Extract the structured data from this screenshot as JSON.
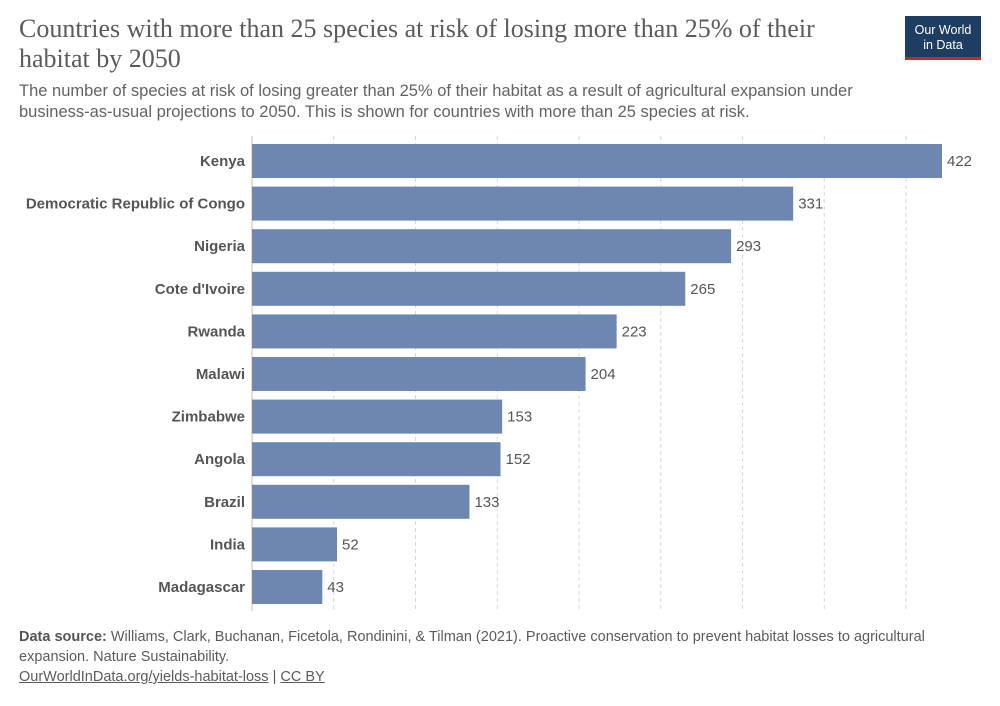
{
  "header": {
    "title": "Countries with more than 25 species at risk of losing more than 25% of their habitat by 2050",
    "subtitle": "The number of species at risk of losing greater than 25% of their habitat as a result of agricultural expansion under business-as-usual projections to 2050. This is shown for countries with more than 25 species at risk.",
    "logo_line1": "Our World",
    "logo_line2": "in Data"
  },
  "colors": {
    "bar": "#6d87b0",
    "grid": "#d8d8d8",
    "logo_bg": "#1d3d63",
    "logo_accent": "#ce261e"
  },
  "chart_data": {
    "type": "bar",
    "orientation": "horizontal",
    "categories": [
      "Kenya",
      "Democratic Republic of Congo",
      "Nigeria",
      "Cote d'Ivoire",
      "Rwanda",
      "Malawi",
      "Zimbabwe",
      "Angola",
      "Brazil",
      "India",
      "Madagascar"
    ],
    "values": [
      422,
      331,
      293,
      265,
      223,
      204,
      153,
      152,
      133,
      52,
      43
    ],
    "xlim": [
      0,
      422
    ],
    "grid": true,
    "data_labels": true
  },
  "footer": {
    "source_label": "Data source:",
    "source_text": "Williams, Clark, Buchanan, Ficetola, Rondinini, & Tilman (2021). Proactive conservation to prevent habitat losses to agricultural expansion. Nature Sustainability.",
    "link_text": "OurWorldInData.org/yields-habitat-loss",
    "separator": "|",
    "license_text": "CC BY"
  }
}
